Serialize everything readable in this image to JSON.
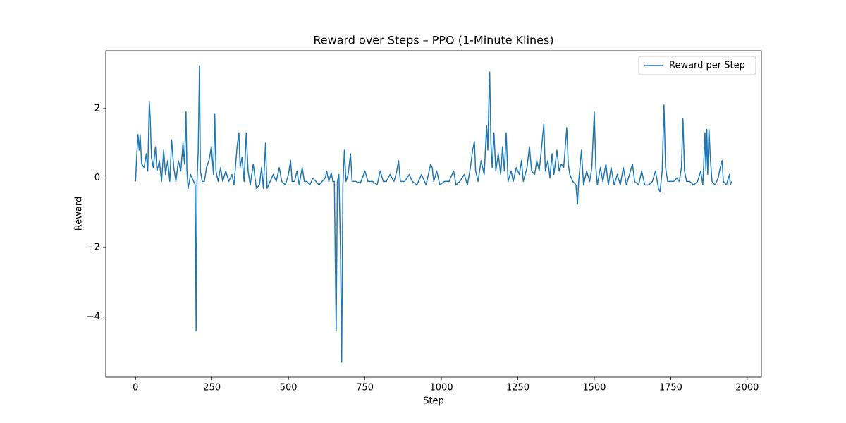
{
  "chart_data": {
    "type": "line",
    "title": "Reward over Steps – PPO (1-Minute Klines)",
    "x_label": "Step",
    "y_label": "Reward",
    "x": [
      0,
      3,
      8,
      12,
      15,
      20,
      28,
      35,
      40,
      45,
      48,
      52,
      58,
      65,
      70,
      78,
      85,
      92,
      98,
      105,
      112,
      118,
      125,
      132,
      140,
      148,
      155,
      160,
      165,
      168,
      172,
      180,
      190,
      195,
      198,
      201,
      205,
      209,
      212,
      218,
      225,
      232,
      240,
      248,
      255,
      259,
      263,
      270,
      278,
      285,
      295,
      305,
      315,
      322,
      332,
      338,
      342,
      348,
      355,
      362,
      368,
      375,
      385,
      395,
      405,
      412,
      418,
      425,
      430,
      440,
      450,
      460,
      470,
      478,
      490,
      500,
      507,
      512,
      520,
      528,
      535,
      545,
      552,
      560,
      570,
      580,
      590,
      600,
      610,
      620,
      625,
      632,
      640,
      645,
      650,
      656,
      660,
      665,
      670,
      674,
      678,
      683,
      688,
      695,
      703,
      708,
      720,
      735,
      750,
      760,
      775,
      790,
      800,
      810,
      820,
      832,
      845,
      853,
      860,
      866,
      880,
      895,
      905,
      920,
      935,
      950,
      965,
      970,
      975,
      985,
      995,
      1010,
      1025,
      1040,
      1048,
      1060,
      1075,
      1085,
      1095,
      1102,
      1108,
      1112,
      1120,
      1130,
      1140,
      1148,
      1152,
      1156,
      1158,
      1162,
      1166,
      1172,
      1178,
      1186,
      1194,
      1200,
      1206,
      1212,
      1218,
      1228,
      1235,
      1245,
      1255,
      1262,
      1268,
      1280,
      1288,
      1295,
      1305,
      1312,
      1320,
      1328,
      1335,
      1340,
      1348,
      1355,
      1362,
      1368,
      1378,
      1385,
      1392,
      1400,
      1410,
      1415,
      1420,
      1430,
      1440,
      1445,
      1449,
      1458,
      1465,
      1475,
      1485,
      1492,
      1500,
      1505,
      1510,
      1520,
      1528,
      1538,
      1546,
      1555,
      1565,
      1575,
      1585,
      1595,
      1605,
      1615,
      1625,
      1632,
      1645,
      1655,
      1665,
      1678,
      1690,
      1700,
      1710,
      1715,
      1722,
      1728,
      1733,
      1740,
      1750,
      1760,
      1770,
      1778,
      1785,
      1790,
      1795,
      1802,
      1812,
      1825,
      1838,
      1848,
      1855,
      1862,
      1865,
      1868,
      1871,
      1875,
      1880,
      1885,
      1895,
      1905,
      1912,
      1918,
      1922,
      1932,
      1942,
      1945,
      1949
    ],
    "series": [
      {
        "name": "Reward per Step",
        "color": "#1f77b4",
        "values": [
          -0.1,
          0.5,
          1.25,
          0.8,
          1.25,
          0.4,
          0.3,
          0.7,
          0.2,
          2.2,
          1.7,
          0.6,
          0.3,
          0.9,
          0.2,
          0.5,
          -0.1,
          0.8,
          0.1,
          0.5,
          -0.1,
          1.1,
          0.3,
          -0.1,
          0.5,
          0.2,
          1.0,
          0.4,
          1.9,
          0.2,
          -0.3,
          0.1,
          -0.1,
          -0.2,
          -4.4,
          -0.1,
          0.8,
          3.23,
          0.2,
          -0.1,
          -0.1,
          0.3,
          0.5,
          0.9,
          0.1,
          1.85,
          0.2,
          -0.1,
          0.3,
          -0.1,
          0.2,
          -0.1,
          0.1,
          -0.2,
          0.9,
          1.3,
          0.3,
          0.6,
          -0.1,
          1.3,
          0.2,
          -0.2,
          0.4,
          -0.3,
          -0.2,
          0.3,
          -0.3,
          1.0,
          -0.3,
          -0.1,
          0.1,
          -0.1,
          0.3,
          -0.1,
          -0.2,
          0.1,
          0.5,
          -0.1,
          -0.1,
          0.2,
          -0.2,
          0.3,
          -0.1,
          -0.1,
          -0.2,
          0.0,
          -0.1,
          -0.2,
          -0.1,
          0.0,
          0.2,
          -0.1,
          0.15,
          -0.1,
          -0.1,
          -4.4,
          -0.1,
          0.1,
          -2.0,
          -5.3,
          -0.2,
          0.8,
          -0.1,
          0.1,
          0.7,
          -0.1,
          -0.1,
          -0.15,
          0.2,
          -0.1,
          -0.1,
          -0.2,
          0.2,
          -0.1,
          -0.1,
          0.1,
          -0.1,
          0.15,
          0.5,
          -0.1,
          -0.1,
          0.1,
          -0.1,
          -0.2,
          0.1,
          -0.2,
          0.4,
          0.3,
          -0.1,
          0.2,
          -0.2,
          -0.1,
          -0.1,
          0.2,
          -0.2,
          -0.1,
          0.1,
          -0.2,
          0.3,
          0.8,
          1.05,
          0.2,
          -0.1,
          0.5,
          0.1,
          1.5,
          0.8,
          2.5,
          3.05,
          1.0,
          0.3,
          1.3,
          0.2,
          0.7,
          0.1,
          0.9,
          0.2,
          1.3,
          -0.1,
          0.2,
          -0.1,
          0.3,
          0.1,
          0.5,
          -0.1,
          0.3,
          0.9,
          0.2,
          0.1,
          0.5,
          0.2,
          0.9,
          1.55,
          0.2,
          0.5,
          0.0,
          0.7,
          0.1,
          0.8,
          0.2,
          0.4,
          0.3,
          1.45,
          0.4,
          0.1,
          -0.1,
          -0.2,
          -0.75,
          -0.1,
          0.8,
          -0.2,
          0.2,
          -0.1,
          0.3,
          1.9,
          0.3,
          -0.2,
          0.3,
          -0.1,
          0.4,
          -0.2,
          0.3,
          -0.2,
          0.1,
          -0.2,
          0.3,
          -0.2,
          0.1,
          0.4,
          -0.1,
          -0.2,
          0.2,
          -0.2,
          -0.2,
          -0.1,
          0.2,
          -0.3,
          -0.4,
          0.2,
          2.1,
          0.3,
          -0.1,
          -0.1,
          -0.1,
          0.0,
          -0.1,
          0.3,
          1.7,
          0.2,
          -0.1,
          -0.1,
          -0.2,
          -0.1,
          0.2,
          -0.2,
          1.3,
          0.2,
          1.4,
          0.1,
          1.4,
          0.5,
          -0.1,
          -0.2,
          0.0,
          0.3,
          0.5,
          -0.1,
          -0.2,
          0.1,
          -0.2,
          -0.1
        ]
      }
    ],
    "xlim": [
      -97.45,
      2046.45
    ],
    "xticks": [
      0,
      250,
      500,
      750,
      1000,
      1250,
      1500,
      1750,
      2000
    ],
    "ylim": [
      -5.73,
      3.66
    ],
    "yticks": [
      {
        "value": -4,
        "label": "−4"
      },
      {
        "value": -2,
        "label": "−2"
      },
      0,
      2
    ],
    "grid": false,
    "legend": "upper right"
  }
}
